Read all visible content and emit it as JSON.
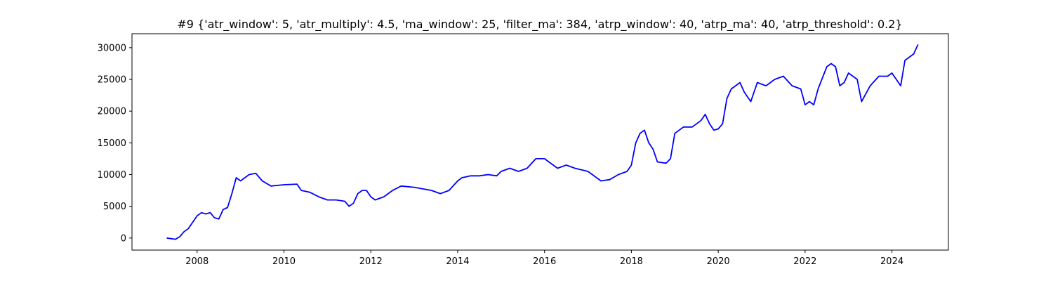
{
  "chart_data": {
    "type": "line",
    "title": "#9 {'atr_window': 5, 'atr_multiply': 4.5, 'ma_window': 25, 'filter_ma': 384, 'atrp_window': 40, 'atrp_ma': 40, 'atrp_threshold': 0.2}",
    "xlabel": "",
    "ylabel": "",
    "xlim": [
      2006.5,
      2025.3
    ],
    "ylim": [
      -1900,
      32200
    ],
    "x_ticks": [
      "2008",
      "2010",
      "2012",
      "2014",
      "2016",
      "2018",
      "2020",
      "2022",
      "2024"
    ],
    "y_ticks": [
      "0",
      "5000",
      "10000",
      "15000",
      "20000",
      "25000",
      "30000"
    ],
    "grid": false,
    "legend": "none",
    "line_color": "#0000ff",
    "series": [
      {
        "x": [
          2007.3,
          2007.5,
          2007.6,
          2007.7,
          2007.8,
          2007.9,
          2008.0,
          2008.1,
          2008.2,
          2008.3,
          2008.4,
          2008.5,
          2008.6,
          2008.7,
          2008.8,
          2008.9,
          2009.0,
          2009.1,
          2009.2,
          2009.35,
          2009.5,
          2009.7,
          2010.0,
          2010.3,
          2010.4,
          2010.6,
          2010.8,
          2011.0,
          2011.2,
          2011.4,
          2011.5,
          2011.6,
          2011.7,
          2011.8,
          2011.9,
          2012.0,
          2012.1,
          2012.3,
          2012.5,
          2012.7,
          2013.0,
          2013.4,
          2013.6,
          2013.8,
          2014.0,
          2014.1,
          2014.3,
          2014.5,
          2014.7,
          2014.9,
          2015.0,
          2015.2,
          2015.4,
          2015.6,
          2015.8,
          2016.0,
          2016.1,
          2016.3,
          2016.5,
          2016.7,
          2017.0,
          2017.3,
          2017.5,
          2017.7,
          2017.9,
          2018.0,
          2018.1,
          2018.2,
          2018.3,
          2018.4,
          2018.5,
          2018.6,
          2018.8,
          2018.9,
          2019.0,
          2019.2,
          2019.4,
          2019.6,
          2019.7,
          2019.8,
          2019.9,
          2020.0,
          2020.1,
          2020.2,
          2020.3,
          2020.5,
          2020.6,
          2020.75,
          2020.9,
          2021.1,
          2021.3,
          2021.5,
          2021.7,
          2021.9,
          2022.0,
          2022.1,
          2022.2,
          2022.3,
          2022.5,
          2022.6,
          2022.7,
          2022.8,
          2022.9,
          2023.0,
          2023.2,
          2023.3,
          2023.5,
          2023.7,
          2023.9,
          2024.0,
          2024.1,
          2024.2,
          2024.3,
          2024.5,
          2024.6
        ],
        "values": [
          0,
          -200,
          200,
          1000,
          1500,
          2500,
          3500,
          4000,
          3800,
          4000,
          3200,
          3000,
          4500,
          4800,
          7000,
          9500,
          9000,
          9500,
          10000,
          10200,
          9000,
          8200,
          8400,
          8500,
          7500,
          7200,
          6500,
          6000,
          6000,
          5800,
          5000,
          5500,
          7000,
          7500,
          7500,
          6500,
          6000,
          6500,
          7500,
          8200,
          8000,
          7500,
          7000,
          7500,
          9000,
          9500,
          9800,
          9800,
          10000,
          9800,
          10500,
          11000,
          10500,
          11000,
          12500,
          12500,
          12000,
          11000,
          11500,
          11000,
          10500,
          9000,
          9200,
          10000,
          10500,
          11500,
          15000,
          16500,
          17000,
          15000,
          14000,
          12000,
          11800,
          12500,
          16500,
          17500,
          17500,
          18500,
          19500,
          18000,
          17000,
          17200,
          18000,
          22000,
          23500,
          24500,
          23000,
          21500,
          24500,
          24000,
          25000,
          25500,
          24000,
          23500,
          21000,
          21500,
          21000,
          23500,
          27000,
          27500,
          27000,
          24000,
          24500,
          26000,
          25000,
          21500,
          24000,
          25500,
          25500,
          26000,
          25000,
          24000,
          28000,
          29000,
          30500
        ]
      }
    ]
  }
}
